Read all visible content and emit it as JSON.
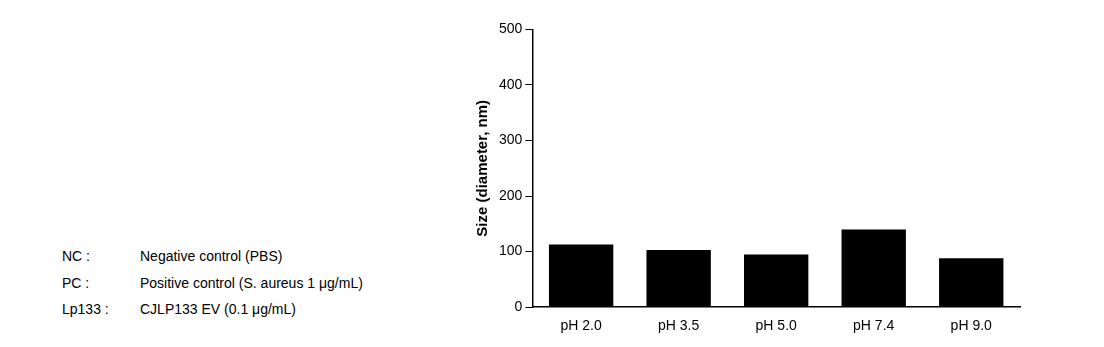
{
  "chart_data": {
    "type": "bar",
    "y_label": "Size (diameter, nm)",
    "categories": [
      "pH 2.0",
      "pH 3.5",
      "pH 5.0",
      "pH 7.4",
      "pH 9.0"
    ],
    "values": [
      113,
      103,
      95,
      140,
      88
    ],
    "color": "#000000",
    "ylim": [
      0,
      500
    ],
    "yticks": [
      0,
      100,
      200,
      300,
      400,
      500
    ],
    "grid": false,
    "annotations": [
      {
        "label": "NC :",
        "text": "Negative control (PBS)"
      },
      {
        "label": "PC :",
        "text": "Positive control (S. aureus 1 μg/mL)"
      },
      {
        "label": "Lp133 :",
        "text": "CJLP133 EV (0.1 μg/mL)"
      }
    ]
  }
}
